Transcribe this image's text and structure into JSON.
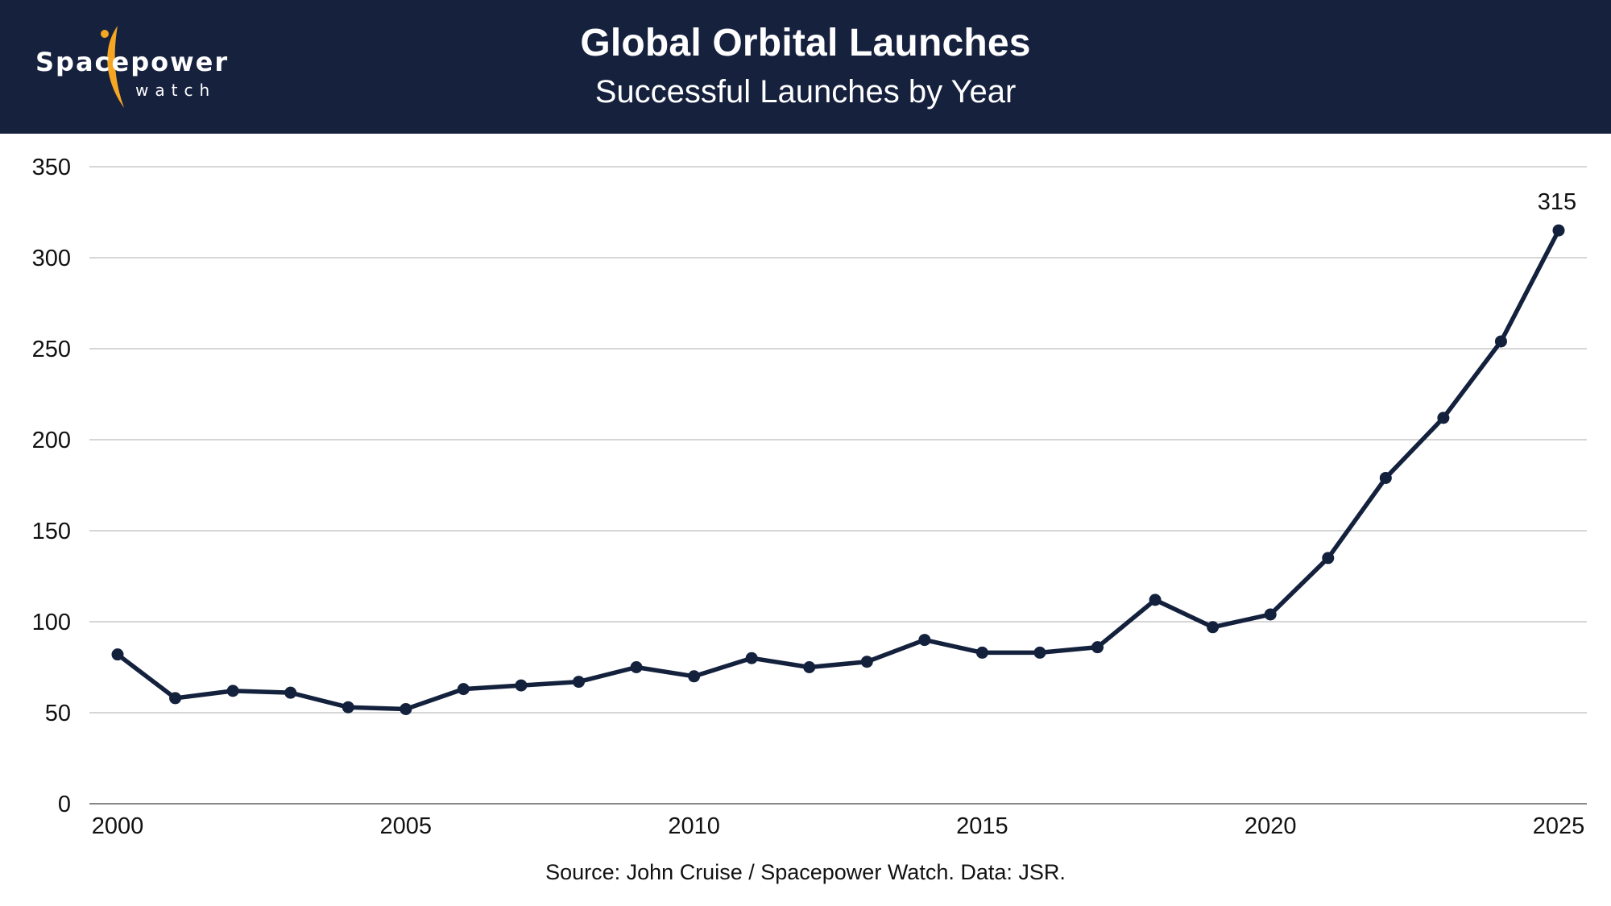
{
  "header": {
    "title": "Global Orbital Launches",
    "subtitle": "Successful Launches by Year",
    "logo": {
      "word": "Spacepower",
      "sub": "watch",
      "accent_icon": "rocket-swoosh-icon"
    }
  },
  "colors": {
    "header_bg": "#16213e",
    "line": "#14213d",
    "accent": "#f5a623",
    "grid": "#c8c8c8"
  },
  "source": "Source: John Cruise / Spacepower Watch. Data: JSR.",
  "chart_data": {
    "type": "line",
    "title": "Global Orbital Launches",
    "subtitle": "Successful Launches by Year",
    "xlabel": "",
    "ylabel": "",
    "x": [
      2000,
      2001,
      2002,
      2003,
      2004,
      2005,
      2006,
      2007,
      2008,
      2009,
      2010,
      2011,
      2012,
      2013,
      2014,
      2015,
      2016,
      2017,
      2018,
      2019,
      2020,
      2021,
      2022,
      2023,
      2024,
      2025
    ],
    "series": [
      {
        "name": "Successful Launches",
        "values": [
          82,
          58,
          62,
          61,
          53,
          52,
          63,
          65,
          67,
          75,
          70,
          80,
          75,
          78,
          90,
          83,
          83,
          86,
          112,
          97,
          104,
          135,
          179,
          212,
          254,
          315
        ]
      }
    ],
    "xlim": [
      2000,
      2025
    ],
    "ylim": [
      0,
      350
    ],
    "yticks": [
      0,
      50,
      100,
      150,
      200,
      250,
      300,
      350
    ],
    "xticks": [
      2000,
      2005,
      2010,
      2015,
      2020,
      2025
    ],
    "grid": true,
    "legend": "none",
    "annotations": [
      {
        "x": 2025,
        "y": 315,
        "text": "315"
      }
    ]
  }
}
